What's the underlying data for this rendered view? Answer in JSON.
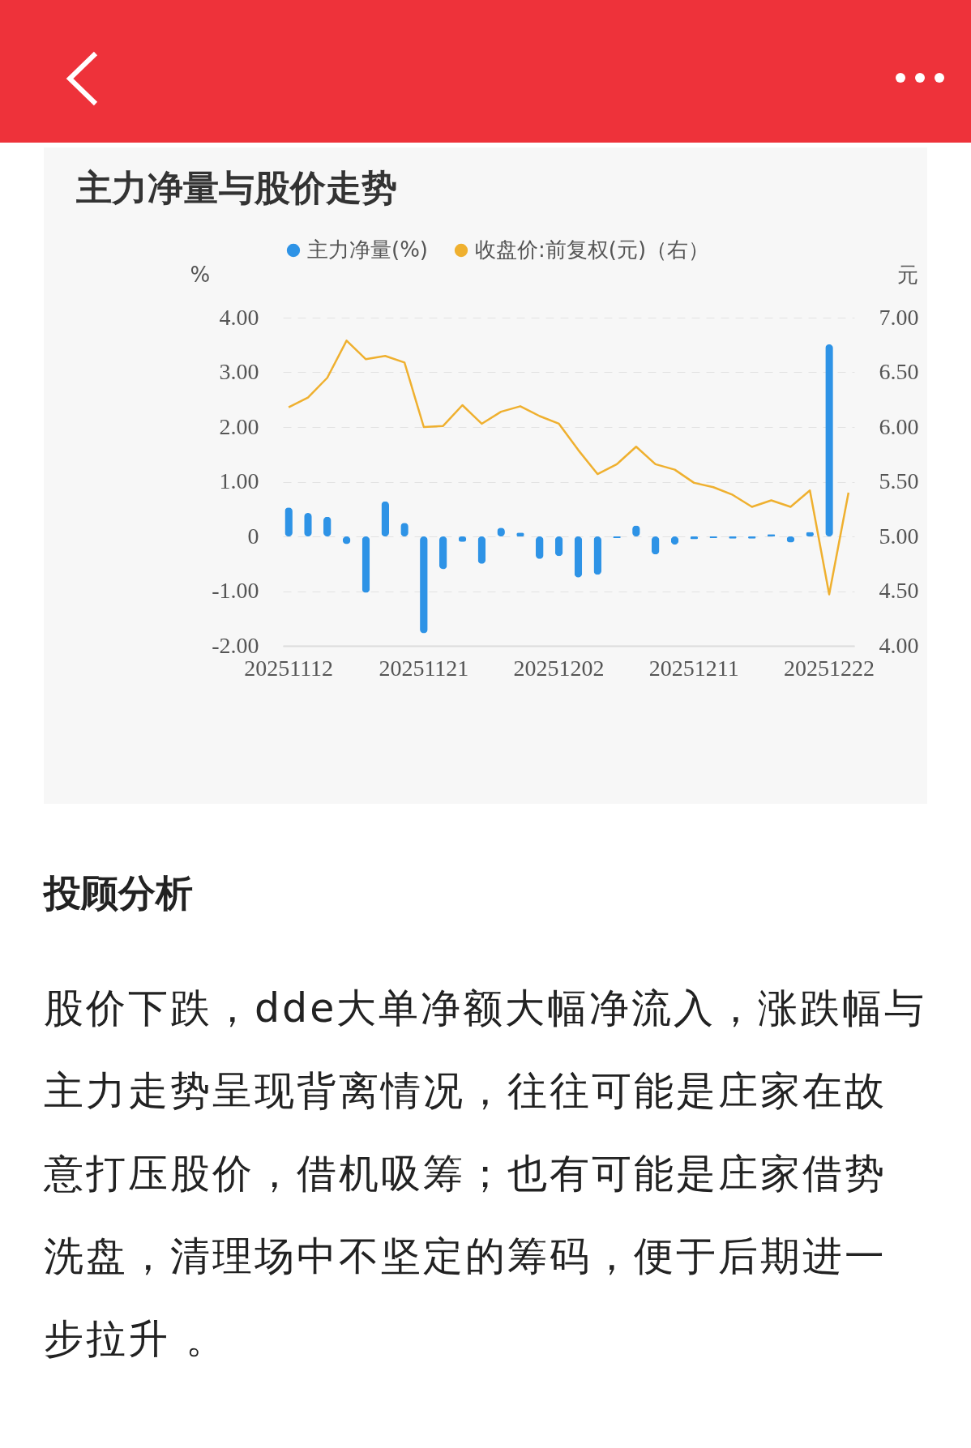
{
  "chart_data": {
    "type": "bar",
    "title": "主力净量与股价走势",
    "categories": [
      "20251112",
      null,
      null,
      null,
      null,
      null,
      null,
      "20251121",
      null,
      null,
      null,
      null,
      null,
      null,
      "20251202",
      null,
      null,
      null,
      null,
      null,
      null,
      "20251211",
      null,
      null,
      null,
      null,
      null,
      null,
      "20251222",
      null
    ],
    "series": [
      {
        "name": "主力净量(%)",
        "type": "bar",
        "color": "#2e93e6",
        "values": [
          0.53,
          0.43,
          0.36,
          -0.14,
          -1.03,
          0.64,
          0.25,
          -1.77,
          -0.6,
          -0.1,
          -0.5,
          0.16,
          0.07,
          -0.41,
          -0.36,
          -0.75,
          -0.7,
          -0.03,
          0.2,
          -0.33,
          -0.15,
          -0.05,
          -0.03,
          -0.04,
          -0.04,
          0.04,
          -0.11,
          0.08,
          3.51,
          null
        ]
      },
      {
        "name": "收盘价:前复权(元)（右）",
        "type": "line",
        "axis": "y2",
        "color": "#efb02f",
        "values": [
          6.18,
          6.27,
          6.45,
          6.79,
          6.62,
          6.65,
          6.59,
          6.0,
          6.01,
          6.2,
          6.03,
          6.14,
          6.19,
          6.1,
          6.03,
          5.79,
          5.57,
          5.66,
          5.82,
          5.66,
          5.61,
          5.49,
          5.45,
          5.38,
          5.27,
          5.33,
          5.27,
          5.42,
          4.47,
          5.4
        ]
      }
    ],
    "ylabel": "%",
    "y2label": "元",
    "ylim": [
      -2,
      4
    ],
    "yticks": [
      {
        "value": -2,
        "label": "-2.00"
      },
      {
        "value": -1,
        "label": "-1.00"
      },
      0,
      {
        "value": 1,
        "label": "1.00"
      },
      {
        "value": 2,
        "label": "2.00"
      },
      {
        "value": 3,
        "label": "3.00"
      },
      {
        "value": 4,
        "label": "4.00"
      }
    ],
    "y2lim": [
      4,
      7
    ],
    "y2ticks": [
      {
        "value": 4,
        "label": "4.00"
      },
      {
        "value": 4.5,
        "label": "4.50"
      },
      {
        "value": 5,
        "label": "5.00"
      },
      {
        "value": 5.5,
        "label": "5.50"
      },
      {
        "value": 6,
        "label": "6.00"
      },
      {
        "value": 6.5,
        "label": "6.50"
      },
      {
        "value": 7,
        "label": "7.00"
      }
    ],
    "grid": "y",
    "legend": "top",
    "annotations": [
      "投顾分析",
      "股价下跌，dde大单净额大幅净流入，涨跌幅与主力走势呈现背离情况，往往可能是庄家在故意打压股价，借机吸筹；也有可能是庄家借势洗盘，清理场中不坚定的筹码，便于后期进一步拉升 。"
    ]
  }
}
